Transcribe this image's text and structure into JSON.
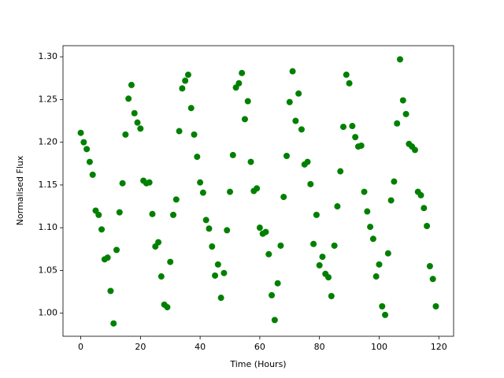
{
  "chart_data": {
    "type": "scatter",
    "xlabel": "Time (Hours)",
    "ylabel": "Normalised Flux",
    "color": "#008000",
    "x": [
      0,
      1,
      2,
      3,
      4,
      5,
      6,
      7,
      8,
      9,
      10,
      11,
      12,
      13,
      14,
      15,
      16,
      17,
      18,
      19,
      20,
      21,
      22,
      23,
      24,
      25,
      26,
      27,
      28,
      29,
      30,
      31,
      32,
      33,
      34,
      35,
      36,
      37,
      38,
      39,
      40,
      41,
      42,
      43,
      44,
      45,
      46,
      47,
      48,
      49,
      50,
      51,
      52,
      53,
      54,
      55,
      56,
      57,
      58,
      59,
      60,
      61,
      62,
      63,
      64,
      65,
      66,
      67,
      68,
      69,
      70,
      71,
      72,
      73,
      74,
      75,
      76,
      77,
      78,
      79,
      80,
      81,
      82,
      83,
      84,
      85,
      86,
      87,
      88,
      89,
      90,
      91,
      92,
      93,
      94,
      95,
      96,
      97,
      98,
      99,
      100,
      101,
      102,
      103,
      104,
      105,
      106,
      107,
      108,
      109,
      110,
      111,
      112,
      113,
      114,
      115,
      116,
      117,
      118,
      119
    ],
    "values": [
      1.211,
      1.2,
      1.192,
      1.177,
      1.162,
      1.12,
      1.115,
      1.098,
      1.063,
      1.065,
      1.026,
      0.988,
      1.074,
      1.118,
      1.152,
      1.209,
      1.251,
      1.267,
      1.234,
      1.223,
      1.216,
      1.155,
      1.152,
      1.153,
      1.116,
      1.078,
      1.083,
      1.043,
      1.01,
      1.007,
      1.06,
      1.115,
      1.133,
      1.213,
      1.263,
      1.272,
      1.279,
      1.24,
      1.209,
      1.183,
      1.153,
      1.141,
      1.109,
      1.099,
      1.078,
      1.044,
      1.057,
      1.018,
      1.047,
      1.097,
      1.142,
      1.185,
      1.264,
      1.269,
      1.281,
      1.227,
      1.248,
      1.177,
      1.143,
      1.146,
      1.1,
      1.093,
      1.095,
      1.069,
      1.021,
      0.992,
      1.035,
      1.079,
      1.136,
      1.184,
      1.247,
      1.283,
      1.225,
      1.257,
      1.215,
      1.174,
      1.177,
      1.151,
      1.081,
      1.115,
      1.056,
      1.066,
      1.046,
      1.042,
      1.02,
      1.079,
      1.125,
      1.166,
      1.218,
      1.279,
      1.269,
      1.219,
      1.206,
      1.195,
      1.196,
      1.142,
      1.119,
      1.101,
      1.087,
      1.043,
      1.057,
      1.008,
      0.998,
      1.07,
      1.132,
      1.154,
      1.222,
      1.297,
      1.249,
      1.233,
      1.198,
      1.195,
      1.191,
      1.142,
      1.138,
      1.123,
      1.102,
      1.055,
      1.04,
      1.008
    ],
    "xlim": [
      -5.95,
      124.95
    ],
    "xticks": [
      0,
      20,
      40,
      60,
      80,
      100,
      120
    ],
    "ylim": [
      0.973,
      1.313
    ],
    "yticks": [
      {
        "value": 1,
        "label": "1.00"
      },
      1.05,
      {
        "value": 1.1,
        "label": "1.10"
      },
      1.15,
      {
        "value": 1.2,
        "label": "1.20"
      },
      1.25,
      {
        "value": 1.3,
        "label": "1.30"
      }
    ]
  }
}
